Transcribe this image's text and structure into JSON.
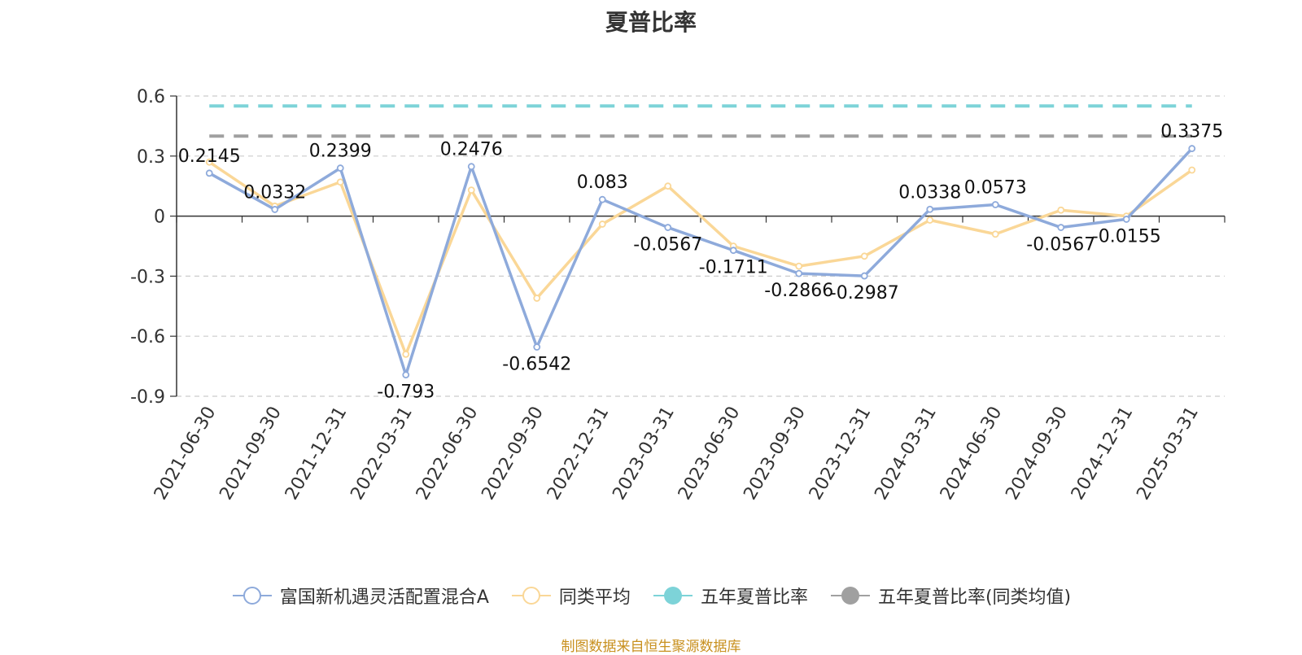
{
  "chart_data": {
    "type": "line",
    "title": "夏普比率",
    "categories": [
      "2021-06-30",
      "2021-09-30",
      "2021-12-31",
      "2022-03-31",
      "2022-06-30",
      "2022-09-30",
      "2022-12-31",
      "2023-03-31",
      "2023-06-30",
      "2023-09-30",
      "2023-12-31",
      "2024-03-31",
      "2024-06-30",
      "2024-09-30",
      "2024-12-31",
      "2025-03-31"
    ],
    "y_ticks": [
      "0.6",
      "0.3",
      "0",
      "-0.3",
      "-0.6",
      "-0.9"
    ],
    "ylim": [
      -0.9,
      0.6
    ],
    "grid": "horizontal dashed",
    "legend_position": "bottom",
    "series": [
      {
        "name": "富国新机遇灵活配置混合A",
        "color": "#8eaadb",
        "values": [
          0.2145,
          0.0332,
          0.2399,
          -0.793,
          0.2476,
          -0.6542,
          0.083,
          -0.0567,
          -0.1711,
          -0.2866,
          -0.2987,
          0.0338,
          0.0573,
          -0.0567,
          -0.0155,
          0.3375
        ],
        "labels": [
          "0.2145",
          "0.0332",
          "0.2399",
          "-0.793",
          "0.2476",
          "-0.6542",
          "0.083",
          "-0.0567",
          "-0.1711",
          "-0.2866",
          "-0.2987",
          "0.0338",
          "0.0573",
          "-0.0567",
          "-0.0155",
          "0.3375"
        ]
      },
      {
        "name": "同类平均",
        "color": "#fad797",
        "values": [
          0.27,
          0.05,
          0.17,
          -0.69,
          0.13,
          -0.41,
          -0.04,
          0.15,
          -0.15,
          -0.25,
          -0.2,
          -0.02,
          -0.09,
          0.03,
          0.0,
          0.23
        ]
      },
      {
        "name": "五年夏普比率",
        "color": "#7dd3d8",
        "style": "dashed",
        "value": 0.55
      },
      {
        "name": "五年夏普比率(同类均值)",
        "color": "#a0a0a0",
        "style": "dashed",
        "value": 0.4
      }
    ]
  },
  "source_note": "制图数据来自恒生聚源数据库"
}
